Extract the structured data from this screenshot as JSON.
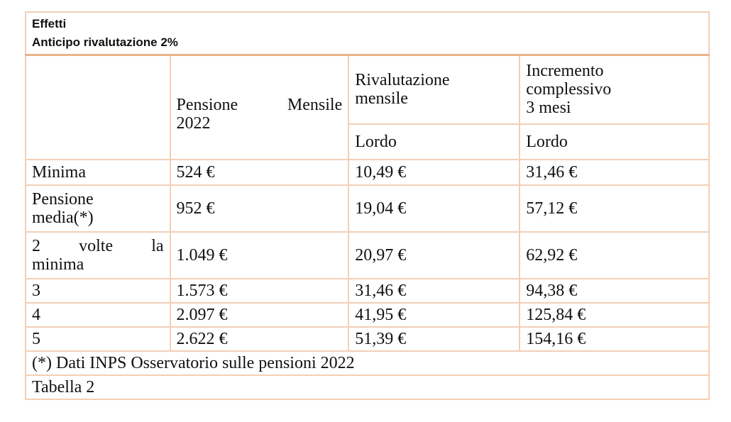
{
  "title": {
    "line1": "Effetti",
    "line2": "Anticipo rivalutazione 2%"
  },
  "headers": {
    "pensione_w1": "Pensione",
    "pensione_w2": "Mensile",
    "pensione_year": "2022",
    "rival_line1": "Rivalutazione",
    "rival_line2": "mensile",
    "incr_line1": "Incremento",
    "incr_line2": "complessivo",
    "incr_line3": "3 mesi",
    "lordo_rival": "Lordo",
    "lordo_incr": "Lordo"
  },
  "rows": [
    {
      "label_a": "Minima",
      "label_b": "",
      "pensione": "524 €",
      "rivalutazione": "10,49 €",
      "incremento": "31,46 €"
    },
    {
      "label_a": "Pensione",
      "label_b": "media(*)",
      "pensione": "952 €",
      "rivalutazione": "19,04 €",
      "incremento": "57,12 €"
    },
    {
      "label_a": "2 volte la",
      "label_b": "minima",
      "pensione": "1.049 €",
      "rivalutazione": "20,97 €",
      "incremento": "62,92 €"
    },
    {
      "label_a": "3",
      "label_b": "",
      "pensione": "1.573 €",
      "rivalutazione": "31,46 €",
      "incremento": "94,38 €"
    },
    {
      "label_a": "4",
      "label_b": "",
      "pensione": "2.097 €",
      "rivalutazione": "41,95 €",
      "incremento": "125,84 €"
    },
    {
      "label_a": "5",
      "label_b": "",
      "pensione": "2.622 €",
      "rivalutazione": "51,39 €",
      "incremento": "154,16 €"
    }
  ],
  "footnote": "(*) Dati INPS Osservatorio sulle pensioni 2022",
  "caption": "Tabella 2",
  "colors": {
    "border": "#f2cfb6",
    "title_border": "#e9b38c"
  }
}
